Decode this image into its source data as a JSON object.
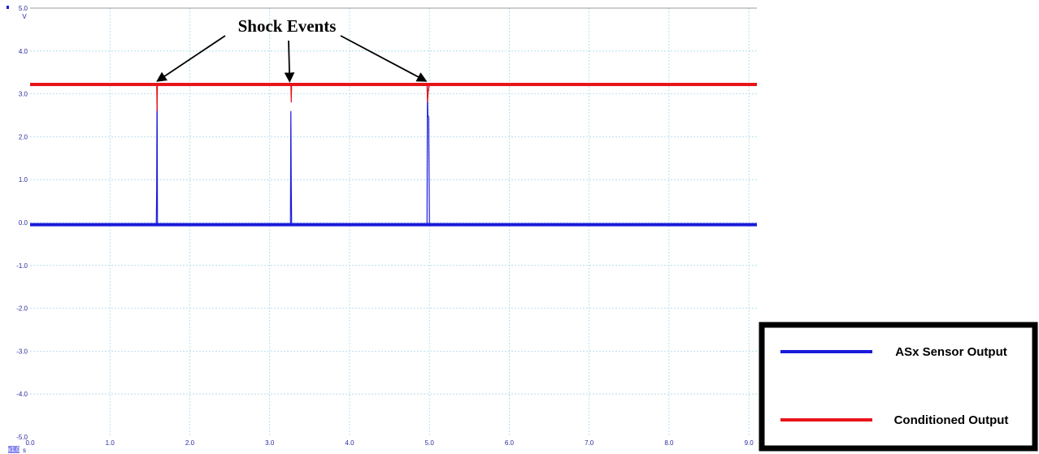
{
  "chart_data": {
    "type": "line",
    "title": "",
    "xlabel": "",
    "ylabel": "",
    "y_unit": "V",
    "x_unit": "s",
    "xlim": [
      0.0,
      9.1
    ],
    "ylim": [
      -5.0,
      5.0
    ],
    "x_ticks": [
      "0.0",
      "1.0",
      "2.0",
      "3.0",
      "4.0",
      "5.0",
      "6.0",
      "7.0",
      "8.0",
      "9.0"
    ],
    "y_ticks": [
      "5.0",
      "4.0",
      "3.0",
      "2.0",
      "1.0",
      "0.0",
      "-1.0",
      "-2.0",
      "-3.0",
      "-4.0",
      "-5.0"
    ],
    "x_scale_badge": "x1.0",
    "grid": true,
    "series": [
      {
        "name": "ASx Sensor Output",
        "color": "#1a1adc",
        "baseline": -0.05,
        "points": [
          [
            0.0,
            -0.05
          ],
          [
            1.58,
            -0.05
          ],
          [
            1.585,
            0.75
          ],
          [
            1.59,
            3.25
          ],
          [
            1.595,
            -0.05
          ],
          [
            3.26,
            -0.05
          ],
          [
            3.265,
            2.6
          ],
          [
            3.27,
            0.85
          ],
          [
            3.275,
            -0.05
          ],
          [
            4.97,
            -0.05
          ],
          [
            4.975,
            3.2
          ],
          [
            4.98,
            2.5
          ],
          [
            4.99,
            2.45
          ],
          [
            5.0,
            -0.05
          ],
          [
            9.1,
            -0.05
          ]
        ]
      },
      {
        "name": "Conditioned Output",
        "color": "#e8141a",
        "baseline": 3.22,
        "points": [
          [
            0.0,
            3.22
          ],
          [
            1.585,
            3.22
          ],
          [
            1.59,
            2.6
          ],
          [
            1.595,
            3.22
          ],
          [
            3.265,
            3.22
          ],
          [
            3.27,
            2.8
          ],
          [
            3.275,
            3.22
          ],
          [
            4.97,
            3.22
          ],
          [
            4.975,
            2.8
          ],
          [
            4.985,
            3.05
          ],
          [
            5.0,
            3.22
          ],
          [
            9.1,
            3.22
          ]
        ]
      }
    ],
    "annotations": {
      "label": "Shock Events",
      "targets": [
        [
          1.6,
          3.25
        ],
        [
          3.25,
          3.25
        ],
        [
          4.95,
          3.25
        ]
      ]
    },
    "legend": {
      "placement": "bottom-right",
      "entries": [
        "ASx Sensor Output",
        "Conditioned Output"
      ]
    }
  }
}
